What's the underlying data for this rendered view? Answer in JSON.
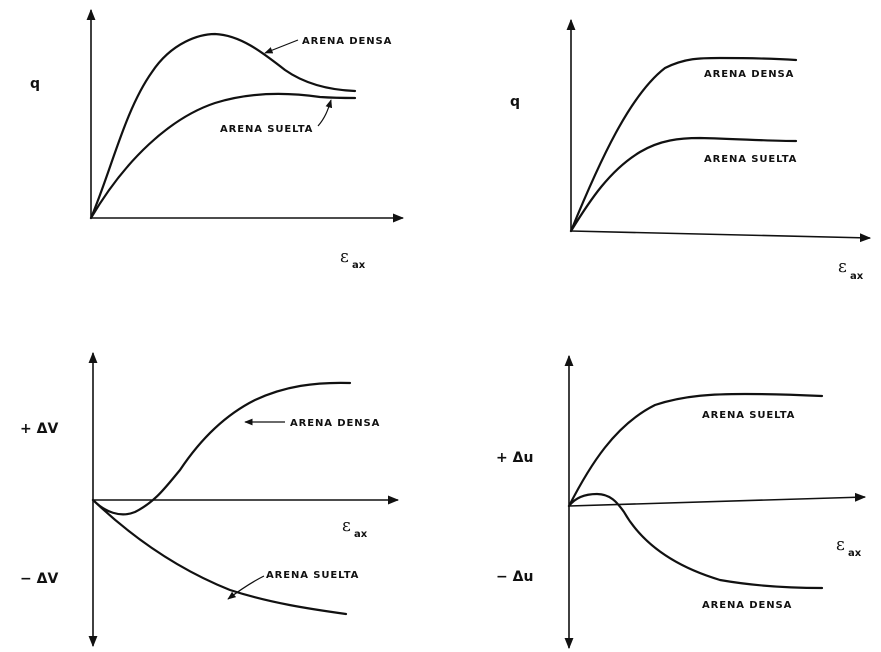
{
  "panels": {
    "top_left": {
      "y_label": "q",
      "x_label_symbol": "ε",
      "x_label_sub": "ax",
      "curves": [
        "ARENA DENSA",
        "ARENA SUELTA"
      ]
    },
    "top_right": {
      "y_label": "q",
      "x_label_symbol": "ε",
      "x_label_sub": "ax",
      "curves": [
        "ARENA DENSA",
        "ARENA SUELTA"
      ]
    },
    "bottom_left": {
      "y_label_pos": "+ ΔV",
      "y_label_neg": "− ΔV",
      "x_label_symbol": "ε",
      "x_label_sub": "ax",
      "curves": [
        "ARENA DENSA",
        "ARENA SUELTA"
      ]
    },
    "bottom_right": {
      "y_label_pos": "+ Δu",
      "y_label_neg": "− Δu",
      "x_label_symbol": "ε",
      "x_label_sub": "ax",
      "curves": [
        "ARENA SUELTA",
        "ARENA DENSA"
      ]
    }
  },
  "colors": {
    "ink": "#111111",
    "background": "#ffffff"
  }
}
